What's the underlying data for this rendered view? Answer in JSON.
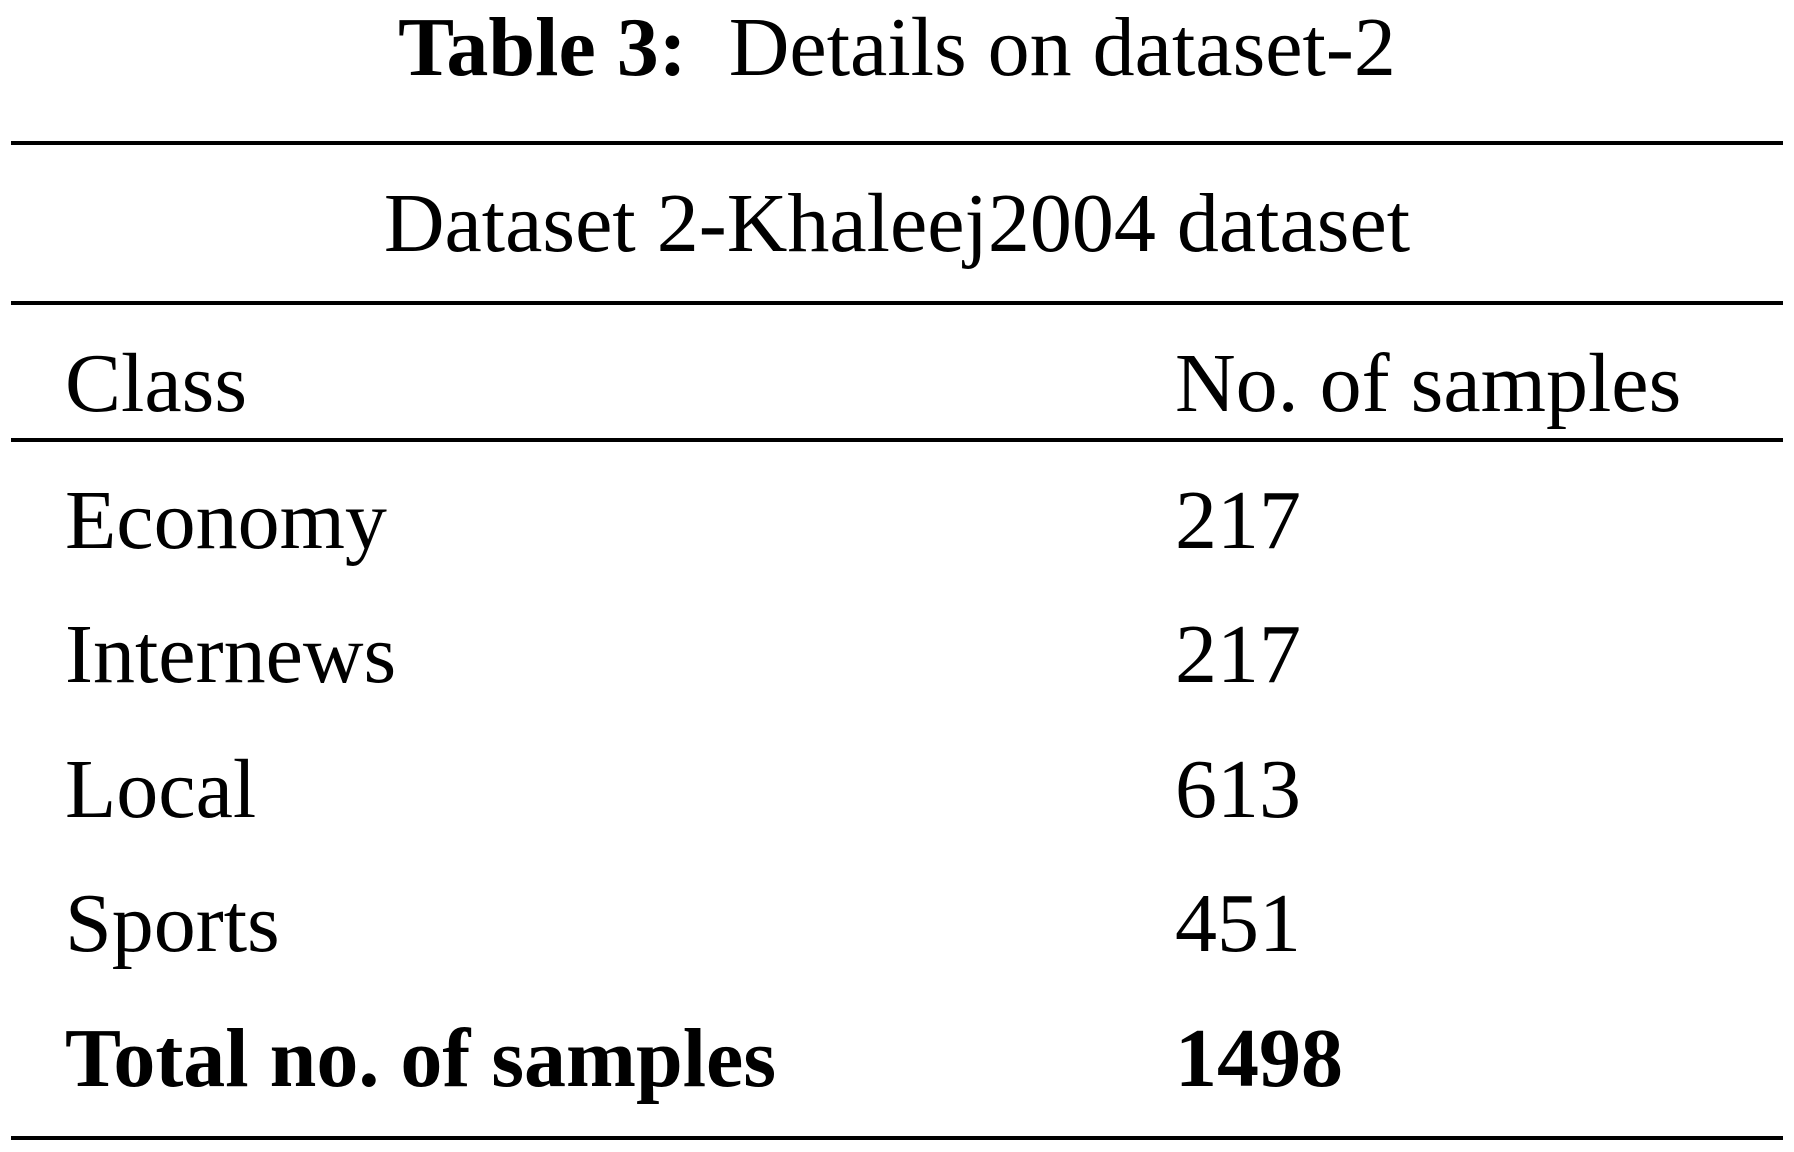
{
  "caption": {
    "label": "Table 3:",
    "text": "Details on dataset-2"
  },
  "table": {
    "group": "Dataset 2-Khaleej2004 dataset",
    "header": [
      "Class",
      "No. of samples"
    ],
    "rows": [
      [
        "Economy",
        "217"
      ],
      [
        "Internews",
        "217"
      ],
      [
        "Local",
        "613"
      ],
      [
        "Sports",
        "451"
      ]
    ],
    "total": [
      "Total no. of samples",
      "1498"
    ]
  }
}
